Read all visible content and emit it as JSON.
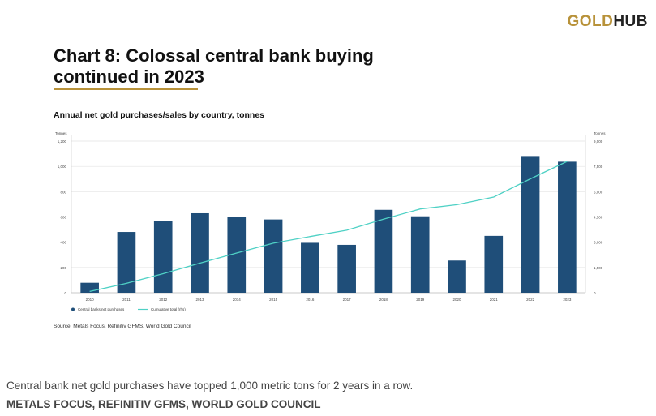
{
  "logo": {
    "gold": "GOLD",
    "hub": "HUB"
  },
  "caption": "Central bank net gold purchases have topped 1,000 metric tons for 2 years in a row.",
  "credit": "METALS FOCUS, REFINITIV GFMS, WORLD GOLD COUNCIL",
  "chart_data": {
    "type": "bar",
    "title": "Chart 8: Colossal central bank buying continued in 2023",
    "subtitle": "Annual net gold purchases/sales by country, tonnes",
    "source": "Source: Metals Focus, Refinitiv GFMS, World Gold Council",
    "categories": [
      "2010",
      "2011",
      "2012",
      "2013",
      "2014",
      "2015",
      "2016",
      "2017",
      "2018",
      "2019",
      "2020",
      "2021",
      "2022",
      "2023"
    ],
    "series": [
      {
        "name": "Central banks net purchases",
        "type": "bar",
        "axis": "left",
        "values": [
          79,
          481,
          569,
          629,
          601,
          580,
          395,
          379,
          656,
          605,
          255,
          450,
          1082,
          1037
        ]
      },
      {
        "name": "Cumulative total (rhs)",
        "type": "line",
        "axis": "right",
        "values": [
          79,
          560,
          1129,
          1758,
          2359,
          2939,
          3334,
          3713,
          4369,
          4974,
          5229,
          5679,
          6761,
          7798
        ]
      }
    ],
    "ylabel": "Tonnes",
    "y2label": "Tonnes",
    "ylim": [
      0,
      1200
    ],
    "y2lim": [
      0,
      9000
    ],
    "yticks": [
      "0",
      "200",
      "400",
      "600",
      "800",
      "1,000",
      "1,200"
    ],
    "y2ticks": [
      "0",
      "1,500",
      "3,000",
      "4,500",
      "6,000",
      "7,500",
      "9,000"
    ],
    "grid": true,
    "legend": "bottom-left",
    "colors": {
      "bar": "#1f4e79",
      "line": "#4fd1c5",
      "grid": "#e3e3e3",
      "accent": "#b8923a"
    }
  }
}
